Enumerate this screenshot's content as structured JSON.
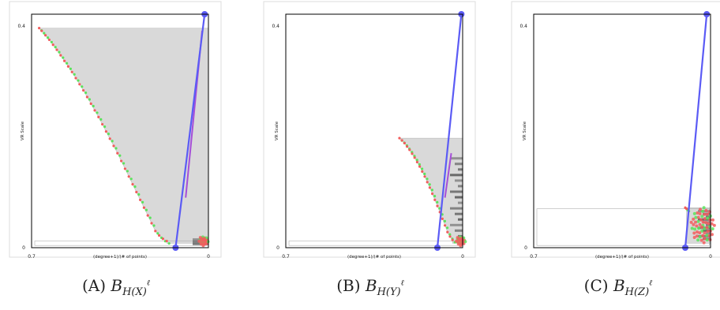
{
  "chart_data": [
    {
      "type": "scatter",
      "ylabel": "VR Scale",
      "xlabel": "(degree+1)/(# of points)",
      "xlim": [
        0.7,
        0
      ],
      "ylim": [
        0,
        0.42
      ],
      "xticks": [
        "0.7",
        "0"
      ],
      "yticks": [
        "0.4",
        "0"
      ],
      "caption": {
        "letter": "(A)",
        "script": "B",
        "subscript": "H(X)",
        "superscript": "ℓ"
      },
      "staircase": [
        [
          0.67,
          0.395
        ],
        [
          0.66,
          0.39
        ],
        [
          0.645,
          0.382
        ],
        [
          0.63,
          0.374
        ],
        [
          0.615,
          0.365
        ],
        [
          0.6,
          0.356
        ],
        [
          0.585,
          0.346
        ],
        [
          0.57,
          0.336
        ],
        [
          0.555,
          0.326
        ],
        [
          0.54,
          0.316
        ],
        [
          0.525,
          0.305
        ],
        [
          0.51,
          0.294
        ],
        [
          0.495,
          0.283
        ],
        [
          0.48,
          0.271
        ],
        [
          0.465,
          0.259
        ],
        [
          0.45,
          0.247
        ],
        [
          0.435,
          0.235
        ],
        [
          0.42,
          0.222
        ],
        [
          0.405,
          0.209
        ],
        [
          0.39,
          0.196
        ],
        [
          0.375,
          0.183
        ],
        [
          0.36,
          0.17
        ],
        [
          0.345,
          0.156
        ],
        [
          0.33,
          0.142
        ],
        [
          0.315,
          0.128
        ],
        [
          0.3,
          0.114
        ],
        [
          0.285,
          0.1
        ],
        [
          0.27,
          0.086
        ],
        [
          0.255,
          0.072
        ],
        [
          0.24,
          0.058
        ],
        [
          0.225,
          0.044
        ],
        [
          0.21,
          0.03
        ],
        [
          0.195,
          0.022
        ],
        [
          0.18,
          0.016
        ],
        [
          0.165,
          0.012
        ]
      ],
      "shade_top": 0.395,
      "cluster": [
        0.02,
        0.012
      ],
      "blue_line": [
        [
          0.13,
          0.0
        ],
        [
          0.015,
          0.42
        ]
      ],
      "purple_line": [
        [
          0.09,
          0.09
        ],
        [
          0.025,
          0.39
        ]
      ],
      "band_top": 0.012,
      "dark_rows": [
        0.014,
        0.01,
        0.006
      ]
    },
    {
      "type": "scatter",
      "ylabel": "VR Scale",
      "xlabel": "(degree+1)/(# of points)",
      "xlim": [
        0.7,
        0
      ],
      "ylim": [
        0,
        0.42
      ],
      "xticks": [
        "0.7",
        "0"
      ],
      "yticks": [
        "0.4",
        "0"
      ],
      "caption": {
        "letter": "(B)",
        "script": "B",
        "subscript": "H(Y)",
        "superscript": "ℓ"
      },
      "staircase": [
        [
          0.25,
          0.197
        ],
        [
          0.24,
          0.193
        ],
        [
          0.23,
          0.188
        ],
        [
          0.22,
          0.182
        ],
        [
          0.21,
          0.176
        ],
        [
          0.2,
          0.169
        ],
        [
          0.19,
          0.162
        ],
        [
          0.18,
          0.154
        ],
        [
          0.17,
          0.146
        ],
        [
          0.16,
          0.137
        ],
        [
          0.15,
          0.128
        ],
        [
          0.14,
          0.118
        ],
        [
          0.13,
          0.108
        ],
        [
          0.12,
          0.097
        ],
        [
          0.11,
          0.086
        ],
        [
          0.1,
          0.075
        ],
        [
          0.09,
          0.064
        ],
        [
          0.08,
          0.052
        ],
        [
          0.07,
          0.04
        ],
        [
          0.06,
          0.028
        ],
        [
          0.05,
          0.02
        ],
        [
          0.04,
          0.014
        ]
      ],
      "shade_top": 0.197,
      "cluster": [
        0.008,
        0.012
      ],
      "blue_line": [
        [
          0.1,
          0.0
        ],
        [
          0.005,
          0.42
        ]
      ],
      "purple_line": [
        [
          0.07,
          0.09
        ],
        [
          0.045,
          0.17
        ]
      ],
      "band_top": 0.012,
      "dark_rows": [
        0.16,
        0.15,
        0.14,
        0.13,
        0.12,
        0.11,
        0.1,
        0.09,
        0.08,
        0.07,
        0.06,
        0.05,
        0.04,
        0.03,
        0.02
      ]
    },
    {
      "type": "scatter",
      "ylabel": "VR Scale",
      "xlabel": "(degree+1)/(# of points)",
      "xlim": [
        0.7,
        0
      ],
      "ylim": [
        0,
        0.42
      ],
      "xticks": [
        "0.7",
        "0"
      ],
      "yticks": [
        "0.4",
        "0"
      ],
      "caption": {
        "letter": "(C)",
        "script": "B",
        "subscript": "H(Z)",
        "superscript": "ℓ"
      },
      "staircase": [
        [
          0.1,
          0.072
        ],
        [
          0.095,
          0.07
        ]
      ],
      "shade_top": 0.072,
      "cluster": [
        0.03,
        0.04
      ],
      "blue_line": [
        [
          0.1,
          0.0
        ],
        [
          0.015,
          0.42
        ]
      ],
      "purple_line": null,
      "band_top": 0.07,
      "dark_rows": [
        0.065,
        0.06,
        0.055,
        0.05,
        0.045,
        0.04,
        0.035,
        0.03,
        0.025,
        0.02,
        0.015
      ]
    }
  ],
  "colors": {
    "shade": "#d9d9d9",
    "dark": "#555555",
    "blue": "#5b5bf5",
    "purple": "#a64ed8",
    "red": "#f25c5c",
    "green": "#5be35b",
    "frame": "#000000",
    "outer": "#dcdcdc"
  }
}
